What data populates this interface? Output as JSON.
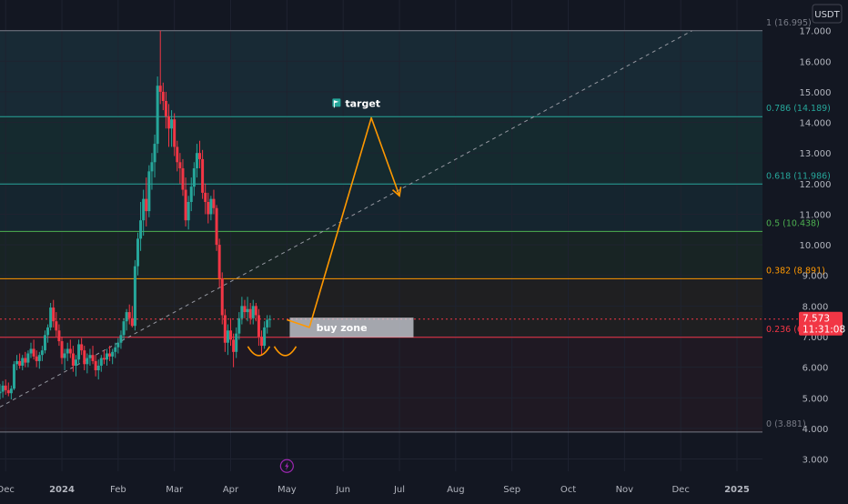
{
  "currency_badge": "USDT",
  "chart_data": {
    "type": "candlestick",
    "price_axis": {
      "ticks": [
        "3.000",
        "4.000",
        "5.000",
        "6.000",
        "7.000",
        "8.000",
        "9.000",
        "10.000",
        "11.000",
        "12.000",
        "13.000",
        "14.000",
        "15.000",
        "16.000",
        "17.000"
      ],
      "tick_values": [
        3,
        4,
        5,
        6,
        7,
        8,
        9,
        10,
        11,
        12,
        13,
        14,
        15,
        16,
        17
      ],
      "range": [
        2.6,
        18.0
      ]
    },
    "time_axis": {
      "labels": [
        "Dec",
        "2024",
        "Feb",
        "Mar",
        "Apr",
        "May",
        "Jun",
        "Jul",
        "Aug",
        "Sep",
        "Oct",
        "Nov",
        "Dec",
        "2025"
      ],
      "month_index": [
        0,
        1,
        2,
        3,
        4,
        5,
        6,
        7,
        8,
        9,
        10,
        11,
        12,
        13
      ],
      "range": [
        -0.1,
        13.55
      ]
    },
    "fib_levels": [
      {
        "label": "1 (16.995)",
        "value": 16.995,
        "color": "#787b86"
      },
      {
        "label": "0.786 (14.189)",
        "value": 14.189,
        "color": "#26a69a"
      },
      {
        "label": "0.618 (11.986)",
        "value": 11.986,
        "color": "#26a69a"
      },
      {
        "label": "0.5 (10.438)",
        "value": 10.438,
        "color": "#4caf50"
      },
      {
        "label": "0.382 (8.891)",
        "value": 8.891,
        "color": "#ff9800"
      },
      {
        "label": "0.236 (6.976)",
        "value": 6.976,
        "color": "#f23645"
      },
      {
        "label": "0 (3.881)",
        "value": 3.881,
        "color": "#787b86"
      }
    ],
    "fib_trend_line": {
      "from": {
        "month": -0.1,
        "price": 4.7
      },
      "to": {
        "month": 12.2,
        "price": 16.995
      }
    },
    "current_price": {
      "value": 7.573,
      "label": "7.573",
      "countdown": "11:31:08",
      "color": "#f23645"
    },
    "annotations": {
      "target_label": "target",
      "buy_zone_label": "buy zone",
      "buy_zone": {
        "month_start": 5.05,
        "month_end": 7.25,
        "price_low": 6.976,
        "price_high": 7.62
      },
      "projection_path": [
        {
          "month": 5.0,
          "price": 7.55
        },
        {
          "month": 5.4,
          "price": 7.3
        },
        {
          "month": 6.5,
          "price": 14.15
        },
        {
          "month": 7.0,
          "price": 11.6
        }
      ],
      "target_flag": {
        "month": 6.1,
        "price": 14.6
      },
      "bottom_arcs": [
        {
          "month": 4.5,
          "price": 6.5
        },
        {
          "month": 4.97,
          "price": 6.5
        }
      ],
      "event_marker": {
        "month": 5.0,
        "price": 2.77
      }
    },
    "candles": [
      [
        -0.1,
        5.15,
        5.45,
        4.95,
        5.2
      ],
      [
        -0.05,
        5.2,
        5.55,
        5.0,
        5.4
      ],
      [
        0.0,
        5.4,
        5.6,
        5.1,
        5.25
      ],
      [
        0.05,
        5.25,
        5.5,
        5.05,
        5.15
      ],
      [
        0.1,
        5.15,
        5.4,
        4.95,
        5.3
      ],
      [
        0.15,
        5.3,
        6.2,
        5.25,
        6.1
      ],
      [
        0.2,
        6.1,
        6.4,
        5.9,
        6.2
      ],
      [
        0.25,
        6.2,
        6.45,
        5.95,
        6.05
      ],
      [
        0.3,
        6.05,
        6.4,
        5.9,
        6.3
      ],
      [
        0.35,
        6.3,
        6.5,
        6.0,
        6.15
      ],
      [
        0.4,
        6.15,
        6.55,
        6.0,
        6.45
      ],
      [
        0.45,
        6.45,
        6.8,
        6.3,
        6.6
      ],
      [
        0.5,
        6.6,
        6.9,
        6.25,
        6.35
      ],
      [
        0.55,
        6.35,
        6.55,
        6.0,
        6.2
      ],
      [
        0.6,
        6.2,
        6.5,
        5.95,
        6.4
      ],
      [
        0.65,
        6.4,
        6.7,
        6.2,
        6.55
      ],
      [
        0.7,
        6.55,
        7.2,
        6.45,
        7.05
      ],
      [
        0.75,
        7.05,
        7.4,
        6.8,
        7.3
      ],
      [
        0.8,
        7.3,
        8.1,
        7.2,
        7.95
      ],
      [
        0.85,
        7.95,
        8.2,
        7.3,
        7.5
      ],
      [
        0.9,
        7.5,
        7.8,
        7.0,
        7.2
      ],
      [
        0.95,
        7.2,
        7.4,
        6.7,
        6.85
      ],
      [
        1.0,
        6.85,
        7.0,
        6.1,
        6.3
      ],
      [
        1.05,
        6.3,
        6.6,
        5.9,
        6.45
      ],
      [
        1.1,
        6.45,
        6.8,
        6.2,
        6.6
      ],
      [
        1.15,
        6.6,
        6.9,
        6.3,
        6.45
      ],
      [
        1.2,
        6.45,
        6.7,
        5.85,
        6.05
      ],
      [
        1.25,
        6.05,
        6.4,
        5.7,
        6.25
      ],
      [
        1.3,
        6.25,
        6.9,
        6.1,
        6.75
      ],
      [
        1.35,
        6.75,
        6.95,
        6.4,
        6.55
      ],
      [
        1.4,
        6.55,
        6.7,
        5.9,
        6.1
      ],
      [
        1.45,
        6.1,
        6.45,
        5.8,
        6.3
      ],
      [
        1.5,
        6.3,
        6.6,
        6.05,
        6.4
      ],
      [
        1.55,
        6.4,
        6.7,
        6.1,
        6.2
      ],
      [
        1.6,
        6.2,
        6.4,
        5.7,
        5.9
      ],
      [
        1.65,
        5.9,
        6.25,
        5.6,
        6.05
      ],
      [
        1.7,
        6.05,
        6.4,
        5.85,
        6.3
      ],
      [
        1.75,
        6.3,
        6.55,
        6.1,
        6.25
      ],
      [
        1.8,
        6.25,
        6.6,
        6.05,
        6.45
      ],
      [
        1.85,
        6.45,
        6.7,
        6.2,
        6.35
      ],
      [
        1.9,
        6.35,
        6.6,
        6.1,
        6.5
      ],
      [
        1.95,
        6.5,
        6.8,
        6.3,
        6.65
      ],
      [
        2.0,
        6.65,
        6.95,
        6.45,
        6.8
      ],
      [
        2.05,
        6.8,
        7.2,
        6.6,
        7.05
      ],
      [
        2.1,
        7.05,
        7.6,
        6.9,
        7.5
      ],
      [
        2.15,
        7.5,
        7.9,
        7.2,
        7.8
      ],
      [
        2.2,
        7.8,
        8.05,
        7.4,
        7.6
      ],
      [
        2.25,
        7.6,
        8.0,
        7.3,
        7.35
      ],
      [
        2.3,
        7.35,
        9.5,
        7.2,
        9.3
      ],
      [
        2.35,
        9.3,
        10.4,
        9.0,
        10.2
      ],
      [
        2.4,
        10.2,
        11.4,
        9.8,
        10.8
      ],
      [
        2.45,
        10.8,
        11.8,
        10.3,
        11.5
      ],
      [
        2.5,
        11.5,
        12.2,
        10.6,
        11.1
      ],
      [
        2.55,
        11.1,
        12.6,
        10.9,
        12.4
      ],
      [
        2.6,
        12.4,
        13.0,
        11.8,
        12.7
      ],
      [
        2.65,
        12.7,
        13.6,
        12.2,
        13.3
      ],
      [
        2.7,
        13.3,
        15.5,
        13.0,
        15.2
      ],
      [
        2.75,
        15.2,
        17.0,
        14.6,
        15.0
      ],
      [
        2.8,
        15.0,
        15.3,
        14.4,
        14.7
      ],
      [
        2.85,
        14.7,
        15.0,
        13.8,
        14.2
      ],
      [
        2.9,
        14.2,
        14.6,
        13.2,
        13.8
      ],
      [
        2.95,
        13.8,
        14.4,
        13.2,
        14.1
      ],
      [
        3.0,
        14.1,
        14.3,
        12.9,
        13.2
      ],
      [
        3.05,
        13.2,
        13.4,
        12.4,
        12.7
      ],
      [
        3.1,
        12.7,
        13.0,
        12.0,
        12.5
      ],
      [
        3.15,
        12.5,
        12.8,
        11.6,
        11.8
      ],
      [
        3.2,
        11.8,
        12.2,
        10.6,
        10.8
      ],
      [
        3.25,
        10.8,
        11.6,
        10.5,
        11.4
      ],
      [
        3.3,
        11.4,
        12.2,
        11.1,
        11.9
      ],
      [
        3.35,
        11.9,
        12.7,
        11.6,
        12.5
      ],
      [
        3.4,
        12.5,
        13.3,
        12.2,
        13.0
      ],
      [
        3.45,
        13.0,
        13.4,
        12.5,
        12.8
      ],
      [
        3.5,
        12.8,
        13.1,
        11.5,
        11.7
      ],
      [
        3.55,
        11.7,
        12.0,
        11.0,
        11.4
      ],
      [
        3.6,
        11.4,
        11.7,
        10.7,
        11.0
      ],
      [
        3.65,
        11.0,
        11.6,
        10.8,
        11.5
      ],
      [
        3.7,
        11.5,
        11.8,
        11.0,
        11.2
      ],
      [
        3.75,
        11.2,
        11.3,
        9.8,
        10.0
      ],
      [
        3.8,
        10.0,
        10.2,
        8.6,
        8.9
      ],
      [
        3.85,
        8.9,
        9.1,
        7.4,
        7.7
      ],
      [
        3.9,
        7.7,
        7.9,
        6.5,
        6.8
      ],
      [
        3.95,
        6.8,
        7.4,
        6.4,
        7.2
      ],
      [
        4.0,
        7.2,
        7.6,
        6.7,
        6.9
      ],
      [
        4.05,
        6.9,
        7.1,
        6.0,
        6.5
      ],
      [
        4.1,
        6.5,
        7.3,
        6.3,
        7.1
      ],
      [
        4.15,
        7.1,
        7.8,
        6.9,
        7.6
      ],
      [
        4.2,
        7.6,
        8.3,
        7.4,
        8.0
      ],
      [
        4.25,
        8.0,
        8.2,
        7.6,
        7.8
      ],
      [
        4.3,
        7.8,
        8.3,
        7.5,
        7.9
      ],
      [
        4.35,
        7.9,
        8.1,
        7.4,
        7.6
      ],
      [
        4.4,
        7.6,
        8.2,
        7.4,
        8.0
      ],
      [
        4.45,
        8.0,
        8.1,
        7.5,
        7.7
      ],
      [
        4.5,
        7.7,
        7.9,
        6.7,
        7.0
      ],
      [
        4.55,
        7.0,
        7.2,
        6.4,
        6.7
      ],
      [
        4.6,
        6.7,
        7.5,
        6.6,
        7.3
      ],
      [
        4.65,
        7.3,
        7.7,
        7.1,
        7.55
      ],
      [
        4.7,
        7.55,
        7.7,
        7.3,
        7.573
      ]
    ],
    "colors": {
      "up": "#26a69a",
      "down": "#f23645",
      "projection": "#ff9800",
      "background": "#131722",
      "axis_text": "#b2b5be"
    }
  }
}
